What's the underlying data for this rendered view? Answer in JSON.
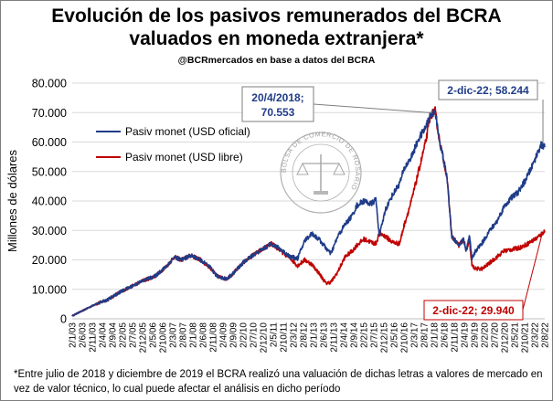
{
  "title_line1": "Evolución de los pasivos remunerados del BCRA",
  "title_line2": "valuados en moneda extranjera*",
  "subtitle": "@BCRmercados en base a datos del BCRA",
  "footnote": "*Entre julio de 2018 y diciembre de 2019 el BCRA realizó una valuación de dichas letras a valores de mercado en vez de valor técnico, lo cual puede afectar el análisis en dicho período",
  "watermark": "BOLSA DE COMERCIO DE ROSARIO",
  "colors": {
    "oficial": "#1f3c88",
    "libre": "#c00000",
    "anno_oficial": "#1f3c88",
    "anno_libre": "#c00000"
  },
  "chart_data": {
    "type": "line",
    "ylabel": "Millones de dólares",
    "ylim": [
      0,
      80000
    ],
    "yticks": [
      "0",
      "10.000",
      "20.000",
      "30.000",
      "40.000",
      "50.000",
      "60.000",
      "70.000",
      "80.000"
    ],
    "xtick_labels": [
      "2/1/03",
      "2/6/03",
      "2/11/03",
      "2/4/04",
      "2/9/04",
      "2/2/05",
      "2/7/05",
      "2/12/05",
      "2/5/06",
      "2/10/06",
      "2/3/07",
      "2/8/07",
      "2/1/08",
      "2/6/08",
      "2/11/08",
      "2/4/09",
      "2/9/09",
      "2/2/10",
      "2/7/10",
      "2/12/10",
      "2/5/11",
      "2/10/11",
      "2/3/12",
      "2/8/12",
      "2/1/13",
      "2/6/13",
      "2/11/13",
      "2/4/14",
      "2/9/14",
      "2/2/15",
      "2/7/15",
      "2/12/15",
      "2/5/16",
      "2/10/16",
      "2/3/17",
      "2/8/17",
      "2/1/18",
      "2/6/18",
      "2/11/18",
      "2/4/19",
      "2/9/19",
      "2/2/20",
      "2/7/20",
      "2/12/20",
      "2/5/21",
      "2/10/21",
      "2/3/22",
      "2/8/22"
    ],
    "legend_position": "top-left",
    "series": [
      {
        "name": "Pasiv monet (USD oficial)",
        "key": "oficial",
        "x": [
          2003.0,
          2003.5,
          2004.0,
          2004.5,
          2005.0,
          2005.5,
          2006.0,
          2006.5,
          2007.0,
          2007.3,
          2007.6,
          2008.0,
          2008.4,
          2008.8,
          2009.1,
          2009.5,
          2009.8,
          2010.2,
          2010.6,
          2011.0,
          2011.4,
          2011.8,
          2012.2,
          2012.5,
          2012.8,
          2013.1,
          2013.4,
          2013.7,
          2013.9,
          2014.0,
          2014.2,
          2014.5,
          2014.8,
          2015.0,
          2015.3,
          2015.6,
          2015.8,
          2015.95,
          2016.2,
          2016.5,
          2016.8,
          2017.0,
          2017.3,
          2017.6,
          2017.9,
          2018.1,
          2018.3,
          2018.45,
          2018.6,
          2018.8,
          2019.0,
          2019.3,
          2019.5,
          2019.6,
          2019.75,
          2019.85,
          2020.0,
          2020.3,
          2020.6,
          2020.9,
          2021.2,
          2021.5,
          2021.8,
          2022.1,
          2022.4,
          2022.6,
          2022.75,
          2022.92
        ],
        "y": [
          1000,
          3000,
          5000,
          6500,
          9000,
          11000,
          13000,
          14500,
          18000,
          21000,
          20000,
          21500,
          20000,
          17500,
          14500,
          13500,
          15500,
          19000,
          21500,
          23500,
          25500,
          23500,
          21000,
          20500,
          26500,
          29000,
          27000,
          24000,
          22000,
          24000,
          28000,
          32000,
          35000,
          38500,
          40000,
          39000,
          40500,
          28000,
          37000,
          42000,
          46000,
          51000,
          55000,
          61000,
          65000,
          69000,
          70553,
          62000,
          56000,
          48000,
          28000,
          25000,
          27000,
          23000,
          28000,
          20000,
          23000,
          26000,
          30000,
          33000,
          38000,
          41000,
          43000,
          47000,
          52000,
          56000,
          59000,
          58244
        ]
      },
      {
        "name": "Pasiv monet (USD libre)",
        "key": "libre",
        "x": [
          2003.0,
          2003.5,
          2004.0,
          2004.5,
          2005.0,
          2005.5,
          2006.0,
          2006.5,
          2007.0,
          2007.3,
          2007.6,
          2008.0,
          2008.4,
          2008.8,
          2009.1,
          2009.5,
          2009.8,
          2010.2,
          2010.6,
          2011.0,
          2011.4,
          2011.8,
          2012.2,
          2012.5,
          2012.8,
          2013.1,
          2013.4,
          2013.7,
          2013.9,
          2014.0,
          2014.2,
          2014.5,
          2014.8,
          2015.0,
          2015.3,
          2015.6,
          2015.8,
          2015.95,
          2016.2,
          2016.5,
          2016.8,
          2017.0,
          2017.3,
          2017.6,
          2017.9,
          2018.1,
          2018.3,
          2018.45,
          2018.6,
          2018.8,
          2019.0,
          2019.3,
          2019.5,
          2019.6,
          2019.75,
          2019.85,
          2020.0,
          2020.3,
          2020.6,
          2020.9,
          2021.2,
          2021.5,
          2021.8,
          2022.1,
          2022.4,
          2022.6,
          2022.75,
          2022.92
        ],
        "y": [
          1000,
          3000,
          5000,
          6500,
          9000,
          11000,
          13000,
          14500,
          18000,
          21000,
          20000,
          21500,
          20000,
          17500,
          14500,
          13500,
          15500,
          19000,
          21500,
          23500,
          25500,
          23000,
          20500,
          18000,
          20000,
          18500,
          15500,
          12000,
          12500,
          13500,
          16000,
          21000,
          23000,
          25000,
          27000,
          26000,
          25500,
          29000,
          28000,
          26000,
          25500,
          32000,
          40000,
          50000,
          60000,
          69000,
          70553,
          62000,
          56000,
          48000,
          28000,
          25000,
          27000,
          23000,
          26000,
          18000,
          17000,
          17000,
          19000,
          21000,
          23000,
          23500,
          24000,
          25000,
          26500,
          27500,
          28500,
          29940
        ]
      }
    ],
    "annotations": [
      {
        "series": "oficial",
        "line1": "20/4/2018;",
        "line2": "70.553"
      },
      {
        "series": "oficial",
        "line1": "2-dic-22; 58.244"
      },
      {
        "series": "libre",
        "line1": "2-dic-22; 29.940"
      }
    ]
  }
}
